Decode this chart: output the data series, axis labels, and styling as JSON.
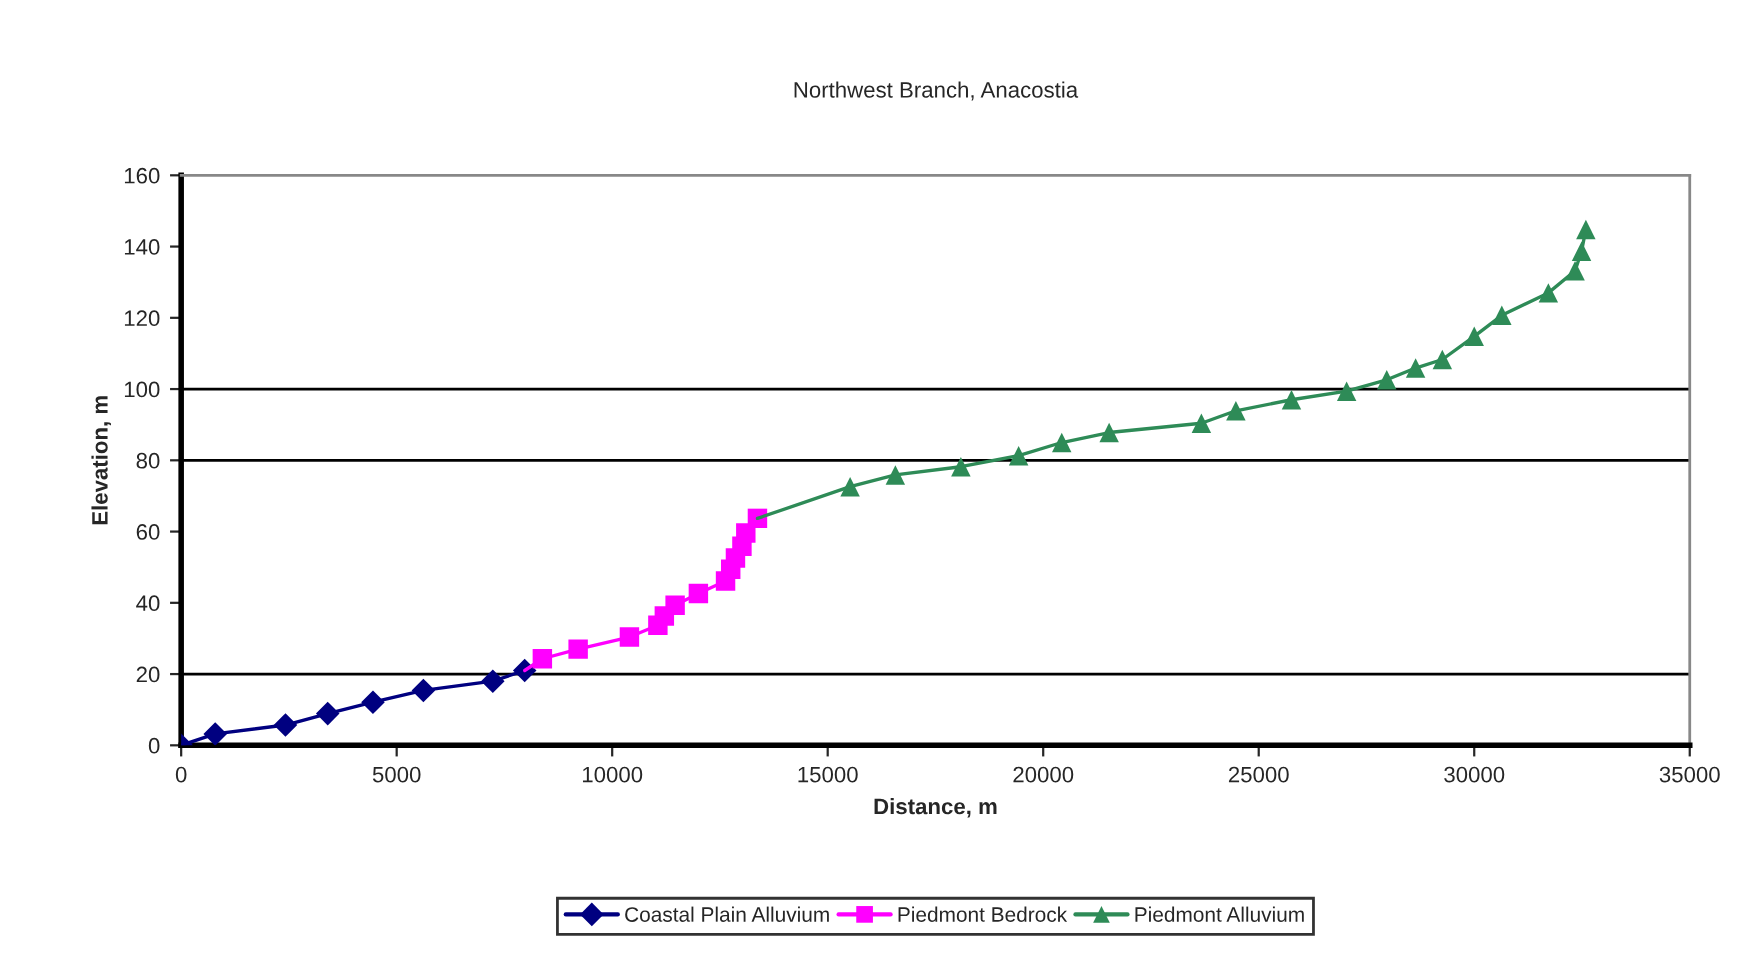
{
  "chart_data": {
    "type": "line",
    "title": "Northwest Branch, Anacostia",
    "xlabel": "Distance, m",
    "ylabel": "Elevation, m",
    "xlim": [
      0,
      35000
    ],
    "xticks": [
      0,
      5000,
      10000,
      15000,
      20000,
      25000,
      30000,
      35000
    ],
    "ylim": [
      0,
      160
    ],
    "yticks": [
      0,
      20,
      40,
      60,
      80,
      100,
      120,
      140,
      160
    ],
    "legend": "bottom",
    "ref_lines": [
      {
        "axis": "y",
        "value": 20,
        "color": "#000000"
      },
      {
        "axis": "y",
        "value": 80,
        "color": "#000000"
      },
      {
        "axis": "y",
        "value": 100,
        "color": "#000000"
      }
    ],
    "series": [
      {
        "name": "Coastal Plain Alluvium",
        "color": "#000080",
        "marker": "diamond",
        "x": [
          0,
          790,
          2420,
          3400,
          4450,
          5620,
          7230,
          7970
        ],
        "values": [
          0,
          3.2,
          5.7,
          8.9,
          12.1,
          15.4,
          18,
          21
        ]
      },
      {
        "name": "Piedmont Bedrock",
        "color": "#ff00ff",
        "marker": "square",
        "x": [
          7970,
          8380,
          9210,
          10400,
          11060,
          11210,
          11460,
          12000,
          12630,
          12750,
          12860,
          13010,
          13100,
          13370
        ],
        "values": [
          21,
          24.3,
          27,
          30.4,
          33.7,
          36.3,
          39.3,
          42.6,
          46.1,
          49.4,
          52.6,
          55.9,
          59.6,
          63.7
        ]
      },
      {
        "name": "Piedmont Alluvium",
        "color": "#2e8b57",
        "marker": "triangle",
        "x": [
          13370,
          15520,
          16570,
          18090,
          19430,
          20430,
          21530,
          23670,
          24470,
          25760,
          27040,
          27970,
          28640,
          29260,
          30000,
          30640,
          31720,
          32340,
          32490,
          32590
        ],
        "values": [
          63.7,
          72.6,
          75.9,
          78.2,
          81.3,
          85,
          87.8,
          90.4,
          93.9,
          97,
          99.4,
          102.6,
          105.9,
          108.3,
          114.8,
          120.7,
          127,
          133.2,
          138.7,
          144.8
        ]
      }
    ]
  }
}
